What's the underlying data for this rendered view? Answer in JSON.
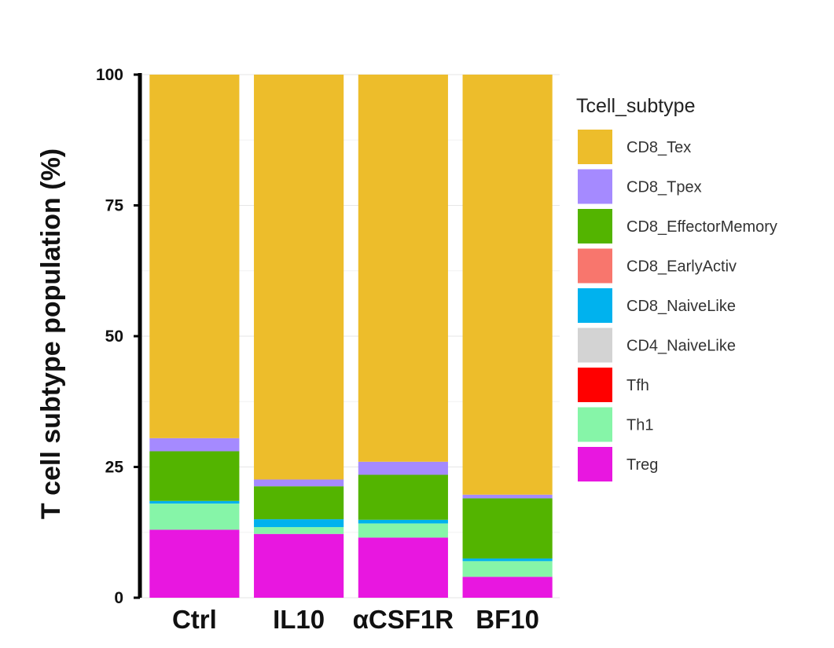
{
  "chart_data": {
    "type": "bar",
    "stacked": true,
    "title": "",
    "xlabel": "",
    "ylabel": "T cell subtype population (%)",
    "ylim": [
      0,
      100
    ],
    "yticks": [
      0,
      25,
      50,
      75,
      100
    ],
    "categories": [
      "Ctrl",
      "IL10",
      "αCSF1R",
      "BF10"
    ],
    "legend_title": "Tcell_subtype",
    "legend_position": "right",
    "series": [
      {
        "name": "Treg",
        "color": "#E817E0",
        "values": [
          13.0,
          12.2,
          11.5,
          4.0
        ]
      },
      {
        "name": "Th1",
        "color": "#86F5A8",
        "values": [
          5.0,
          1.3,
          2.7,
          3.0
        ]
      },
      {
        "name": "Tfh",
        "color": "#FF0000",
        "values": [
          0,
          0,
          0,
          0
        ]
      },
      {
        "name": "CD4_NaiveLike",
        "color": "#D3D3D3",
        "values": [
          0,
          0,
          0,
          0
        ]
      },
      {
        "name": "CD8_NaiveLike",
        "color": "#00B2EE",
        "values": [
          0.5,
          1.5,
          0.7,
          0.5
        ]
      },
      {
        "name": "CD8_EarlyActiv",
        "color": "#F8766D",
        "values": [
          0,
          0,
          0,
          0
        ]
      },
      {
        "name": "CD8_EffectorMemory",
        "color": "#53B400",
        "values": [
          9.5,
          6.3,
          8.6,
          11.5
        ]
      },
      {
        "name": "CD8_Tpex",
        "color": "#A58AFF",
        "values": [
          2.5,
          1.3,
          2.5,
          0.7
        ]
      },
      {
        "name": "CD8_Tex",
        "color": "#EDBD2B",
        "values": [
          69.5,
          77.4,
          74.0,
          80.3
        ]
      }
    ],
    "legend_order": [
      "CD8_Tex",
      "CD8_Tpex",
      "CD8_EffectorMemory",
      "CD8_EarlyActiv",
      "CD8_NaiveLike",
      "CD4_NaiveLike",
      "Tfh",
      "Th1",
      "Treg"
    ]
  }
}
